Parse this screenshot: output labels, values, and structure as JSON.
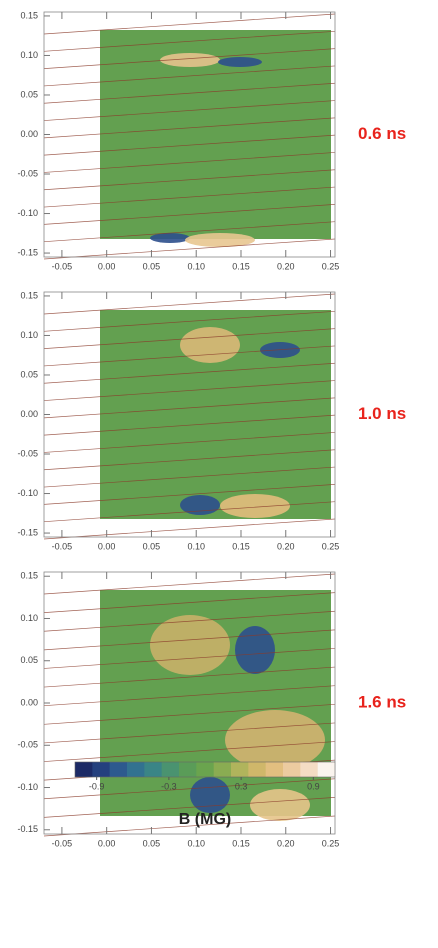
{
  "chart_data": [
    {
      "type": "heatmap",
      "annotation": "0.6 ns",
      "xlim": [
        -0.07,
        0.255
      ],
      "ylim": [
        -0.155,
        0.155
      ],
      "xticks": [
        -0.05,
        {
          "value": 0,
          "label": "0.00"
        },
        0.05,
        {
          "value": 0.1,
          "label": "0.10"
        },
        0.15,
        {
          "value": 0.2,
          "label": "0.20"
        },
        0.25
      ],
      "yticks": [
        0.15,
        {
          "value": 0.1,
          "label": "0.10"
        },
        0.05,
        {
          "value": 0,
          "label": "0.00"
        },
        -0.05,
        {
          "value": -0.1,
          "label": "-0.10"
        },
        -0.15
      ]
    },
    {
      "type": "heatmap",
      "annotation": "1.0 ns",
      "xlim": [
        -0.07,
        0.255
      ],
      "ylim": [
        -0.155,
        0.155
      ],
      "xticks": [
        -0.05,
        {
          "value": 0,
          "label": "0.00"
        },
        0.05,
        {
          "value": 0.1,
          "label": "0.10"
        },
        0.15,
        {
          "value": 0.2,
          "label": "0.20"
        },
        0.25
      ],
      "yticks": [
        0.15,
        {
          "value": 0.1,
          "label": "0.10"
        },
        0.05,
        {
          "value": 0,
          "label": "0.00"
        },
        -0.05,
        {
          "value": -0.1,
          "label": "-0.10"
        },
        -0.15
      ]
    },
    {
      "type": "heatmap",
      "annotation": "1.6 ns",
      "xlim": [
        -0.07,
        0.255
      ],
      "ylim": [
        -0.155,
        0.155
      ],
      "xticks": [
        -0.05,
        {
          "value": 0,
          "label": "0.00"
        },
        0.05,
        {
          "value": 0.1,
          "label": "0.10"
        },
        0.15,
        {
          "value": 0.2,
          "label": "0.20"
        },
        0.25
      ],
      "yticks": [
        0.15,
        {
          "value": 0.1,
          "label": "0.10"
        },
        0.05,
        {
          "value": 0,
          "label": "0.00"
        },
        -0.05,
        {
          "value": -0.1,
          "label": "-0.10"
        },
        -0.15
      ]
    }
  ],
  "colorbar": {
    "label": "B (MG)",
    "lim": [
      -1.08,
      1.08
    ],
    "ticks": [
      -0.9,
      -0.3,
      0.3,
      0.9
    ],
    "colors": [
      "#1c2a66",
      "#24407e",
      "#2d5a8e",
      "#327290",
      "#3a8586",
      "#4a9370",
      "#5a9c58",
      "#6aa44e",
      "#8aac52",
      "#b0b45c",
      "#cfb76a",
      "#e2bf80",
      "#eccba0",
      "#f4dcc4",
      "#faf4ee"
    ]
  }
}
